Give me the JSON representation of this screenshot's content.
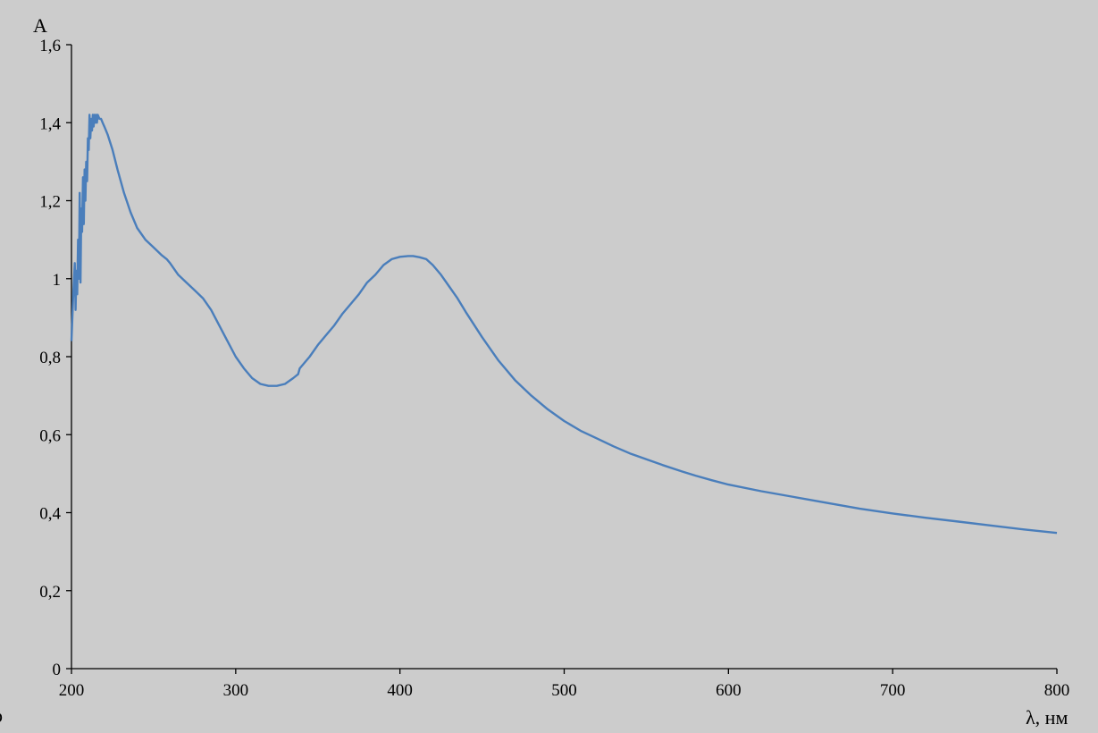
{
  "chart_data": {
    "type": "line",
    "title": "",
    "xlabel": "λ, нм",
    "ylabel": "A",
    "xlim": [
      200,
      800
    ],
    "ylim": [
      0,
      1.6
    ],
    "x_ticks": [
      200,
      300,
      400,
      500,
      600,
      700,
      800
    ],
    "x_tick_labels": [
      "200",
      "300",
      "400",
      "500",
      "600",
      "700",
      "800"
    ],
    "y_ticks": [
      0,
      0.2,
      0.4,
      0.6,
      0.8,
      1.0,
      1.2,
      1.4,
      1.6
    ],
    "y_tick_labels": [
      "0",
      "0,2",
      "0,4",
      "0,6",
      "0,8",
      "1",
      "1,2",
      "1,4",
      "1,6"
    ],
    "grid": false,
    "legend": "none",
    "colors": {
      "plot_background": "#cccccc",
      "line": "#4a7ebb",
      "axis": "#000000"
    },
    "series": [
      {
        "x": [
          200,
          201,
          202,
          202.5,
          203,
          203.5,
          204,
          204.5,
          205,
          205.5,
          206,
          206.5,
          207,
          207.5,
          208,
          208.5,
          209,
          209.5,
          210,
          210.5,
          211,
          211.5,
          212,
          212.5,
          213,
          213.5,
          214,
          214.5,
          215,
          215.5,
          216,
          217,
          218,
          219,
          220,
          222,
          225,
          228,
          232,
          236,
          240,
          245,
          250,
          255,
          258,
          260,
          265,
          270,
          275,
          280,
          285,
          290,
          295,
          300,
          305,
          310,
          315,
          320,
          325,
          330,
          335,
          338,
          339,
          345,
          350,
          355,
          360,
          365,
          370,
          375,
          380,
          385,
          390,
          395,
          400,
          405,
          408,
          412,
          416,
          420,
          425,
          430,
          435,
          440,
          450,
          460,
          470,
          480,
          490,
          500,
          510,
          520,
          530,
          540,
          550,
          560,
          570,
          580,
          590,
          600,
          620,
          640,
          660,
          680,
          700,
          720,
          740,
          760,
          780,
          800
        ],
        "y": [
          0.84,
          0.95,
          1.04,
          0.92,
          1.02,
          0.96,
          1.1,
          1.0,
          1.22,
          0.99,
          1.18,
          1.12,
          1.26,
          1.14,
          1.28,
          1.2,
          1.3,
          1.25,
          1.36,
          1.33,
          1.42,
          1.36,
          1.41,
          1.38,
          1.42,
          1.39,
          1.42,
          1.4,
          1.42,
          1.4,
          1.42,
          1.41,
          1.41,
          1.4,
          1.39,
          1.37,
          1.33,
          1.28,
          1.22,
          1.17,
          1.13,
          1.1,
          1.08,
          1.06,
          1.05,
          1.04,
          1.01,
          0.99,
          0.97,
          0.95,
          0.92,
          0.88,
          0.84,
          0.8,
          0.77,
          0.745,
          0.73,
          0.725,
          0.725,
          0.73,
          0.745,
          0.755,
          0.77,
          0.8,
          0.83,
          0.855,
          0.88,
          0.91,
          0.935,
          0.96,
          0.99,
          1.01,
          1.035,
          1.05,
          1.056,
          1.058,
          1.058,
          1.055,
          1.05,
          1.035,
          1.01,
          0.98,
          0.95,
          0.915,
          0.85,
          0.79,
          0.74,
          0.7,
          0.665,
          0.635,
          0.61,
          0.59,
          0.57,
          0.552,
          0.537,
          0.522,
          0.508,
          0.495,
          0.483,
          0.472,
          0.455,
          0.44,
          0.425,
          0.41,
          0.398,
          0.387,
          0.377,
          0.367,
          0.357,
          0.348
        ]
      }
    ]
  },
  "corner_mark": "b"
}
